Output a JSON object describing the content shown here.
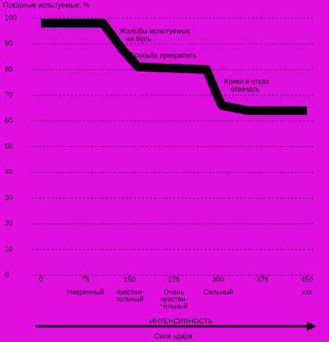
{
  "chart_data": {
    "type": "line",
    "title": "Покорные испытуемые, %",
    "x": [
      0,
      105,
      137,
      164,
      280,
      298,
      306,
      350,
      450
    ],
    "series": [
      {
        "name": null,
        "color": "#000000",
        "values": [
          98,
          98,
          88,
          81,
          80,
          70,
          66,
          64,
          64
        ]
      }
    ],
    "xlim": [
      0,
      450
    ],
    "xticks": [
      0,
      75,
      150,
      225,
      300,
      375,
      450
    ],
    "ylim": [
      0,
      100
    ],
    "yticks": [
      0,
      10,
      20,
      30,
      40,
      50,
      60,
      70,
      80,
      90,
      100
    ],
    "grid": true,
    "intensity_labels": [
      [
        "Умеренный"
      ],
      [
        "Чувстви-",
        "тельный"
      ],
      [
        "Очень",
        "чувстви-",
        "тельный"
      ],
      [
        "Сильный"
      ],
      [
        "ххх"
      ]
    ],
    "annotations": [
      [
        "Жалобы испытуемых",
        "на боль"
      ],
      [
        "Просьба прекратить"
      ],
      [
        "Крики и отказ",
        "отвечать"
      ]
    ],
    "axis_title": "ИНТЕНСИВНОСТЬ",
    "axis_subtitle": "Сила удара"
  }
}
